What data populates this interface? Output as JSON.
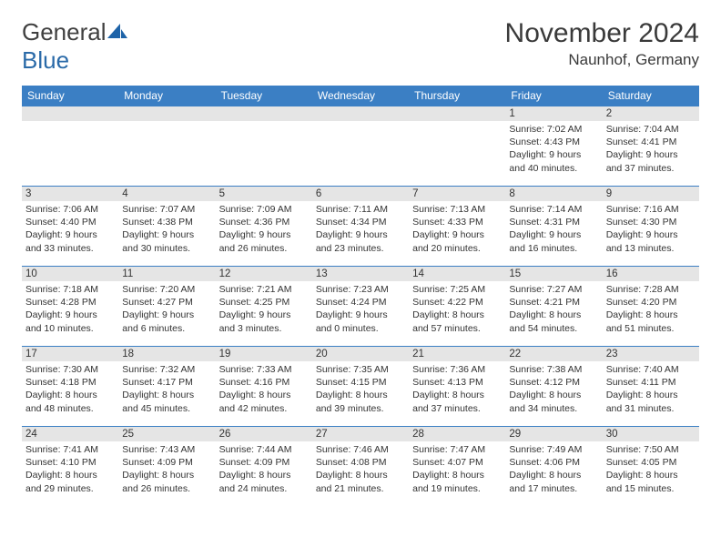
{
  "logo": {
    "word1": "General",
    "word2": "Blue"
  },
  "title": "November 2024",
  "location": "Naunhof, Germany",
  "colors": {
    "header_bg": "#3b7fc4",
    "header_fg": "#ffffff",
    "day_bg": "#e5e5e5",
    "border": "#3b7fc4",
    "logo_accent": "#1e63a8"
  },
  "weekdays": [
    "Sunday",
    "Monday",
    "Tuesday",
    "Wednesday",
    "Thursday",
    "Friday",
    "Saturday"
  ],
  "weeks": [
    [
      null,
      null,
      null,
      null,
      null,
      {
        "n": "1",
        "sr": "7:02 AM",
        "ss": "4:43 PM",
        "dl": "9 hours and 40 minutes."
      },
      {
        "n": "2",
        "sr": "7:04 AM",
        "ss": "4:41 PM",
        "dl": "9 hours and 37 minutes."
      }
    ],
    [
      {
        "n": "3",
        "sr": "7:06 AM",
        "ss": "4:40 PM",
        "dl": "9 hours and 33 minutes."
      },
      {
        "n": "4",
        "sr": "7:07 AM",
        "ss": "4:38 PM",
        "dl": "9 hours and 30 minutes."
      },
      {
        "n": "5",
        "sr": "7:09 AM",
        "ss": "4:36 PM",
        "dl": "9 hours and 26 minutes."
      },
      {
        "n": "6",
        "sr": "7:11 AM",
        "ss": "4:34 PM",
        "dl": "9 hours and 23 minutes."
      },
      {
        "n": "7",
        "sr": "7:13 AM",
        "ss": "4:33 PM",
        "dl": "9 hours and 20 minutes."
      },
      {
        "n": "8",
        "sr": "7:14 AM",
        "ss": "4:31 PM",
        "dl": "9 hours and 16 minutes."
      },
      {
        "n": "9",
        "sr": "7:16 AM",
        "ss": "4:30 PM",
        "dl": "9 hours and 13 minutes."
      }
    ],
    [
      {
        "n": "10",
        "sr": "7:18 AM",
        "ss": "4:28 PM",
        "dl": "9 hours and 10 minutes."
      },
      {
        "n": "11",
        "sr": "7:20 AM",
        "ss": "4:27 PM",
        "dl": "9 hours and 6 minutes."
      },
      {
        "n": "12",
        "sr": "7:21 AM",
        "ss": "4:25 PM",
        "dl": "9 hours and 3 minutes."
      },
      {
        "n": "13",
        "sr": "7:23 AM",
        "ss": "4:24 PM",
        "dl": "9 hours and 0 minutes."
      },
      {
        "n": "14",
        "sr": "7:25 AM",
        "ss": "4:22 PM",
        "dl": "8 hours and 57 minutes."
      },
      {
        "n": "15",
        "sr": "7:27 AM",
        "ss": "4:21 PM",
        "dl": "8 hours and 54 minutes."
      },
      {
        "n": "16",
        "sr": "7:28 AM",
        "ss": "4:20 PM",
        "dl": "8 hours and 51 minutes."
      }
    ],
    [
      {
        "n": "17",
        "sr": "7:30 AM",
        "ss": "4:18 PM",
        "dl": "8 hours and 48 minutes."
      },
      {
        "n": "18",
        "sr": "7:32 AM",
        "ss": "4:17 PM",
        "dl": "8 hours and 45 minutes."
      },
      {
        "n": "19",
        "sr": "7:33 AM",
        "ss": "4:16 PM",
        "dl": "8 hours and 42 minutes."
      },
      {
        "n": "20",
        "sr": "7:35 AM",
        "ss": "4:15 PM",
        "dl": "8 hours and 39 minutes."
      },
      {
        "n": "21",
        "sr": "7:36 AM",
        "ss": "4:13 PM",
        "dl": "8 hours and 37 minutes."
      },
      {
        "n": "22",
        "sr": "7:38 AM",
        "ss": "4:12 PM",
        "dl": "8 hours and 34 minutes."
      },
      {
        "n": "23",
        "sr": "7:40 AM",
        "ss": "4:11 PM",
        "dl": "8 hours and 31 minutes."
      }
    ],
    [
      {
        "n": "24",
        "sr": "7:41 AM",
        "ss": "4:10 PM",
        "dl": "8 hours and 29 minutes."
      },
      {
        "n": "25",
        "sr": "7:43 AM",
        "ss": "4:09 PM",
        "dl": "8 hours and 26 minutes."
      },
      {
        "n": "26",
        "sr": "7:44 AM",
        "ss": "4:09 PM",
        "dl": "8 hours and 24 minutes."
      },
      {
        "n": "27",
        "sr": "7:46 AM",
        "ss": "4:08 PM",
        "dl": "8 hours and 21 minutes."
      },
      {
        "n": "28",
        "sr": "7:47 AM",
        "ss": "4:07 PM",
        "dl": "8 hours and 19 minutes."
      },
      {
        "n": "29",
        "sr": "7:49 AM",
        "ss": "4:06 PM",
        "dl": "8 hours and 17 minutes."
      },
      {
        "n": "30",
        "sr": "7:50 AM",
        "ss": "4:05 PM",
        "dl": "8 hours and 15 minutes."
      }
    ]
  ],
  "labels": {
    "sunrise": "Sunrise:",
    "sunset": "Sunset:",
    "daylight": "Daylight:"
  }
}
